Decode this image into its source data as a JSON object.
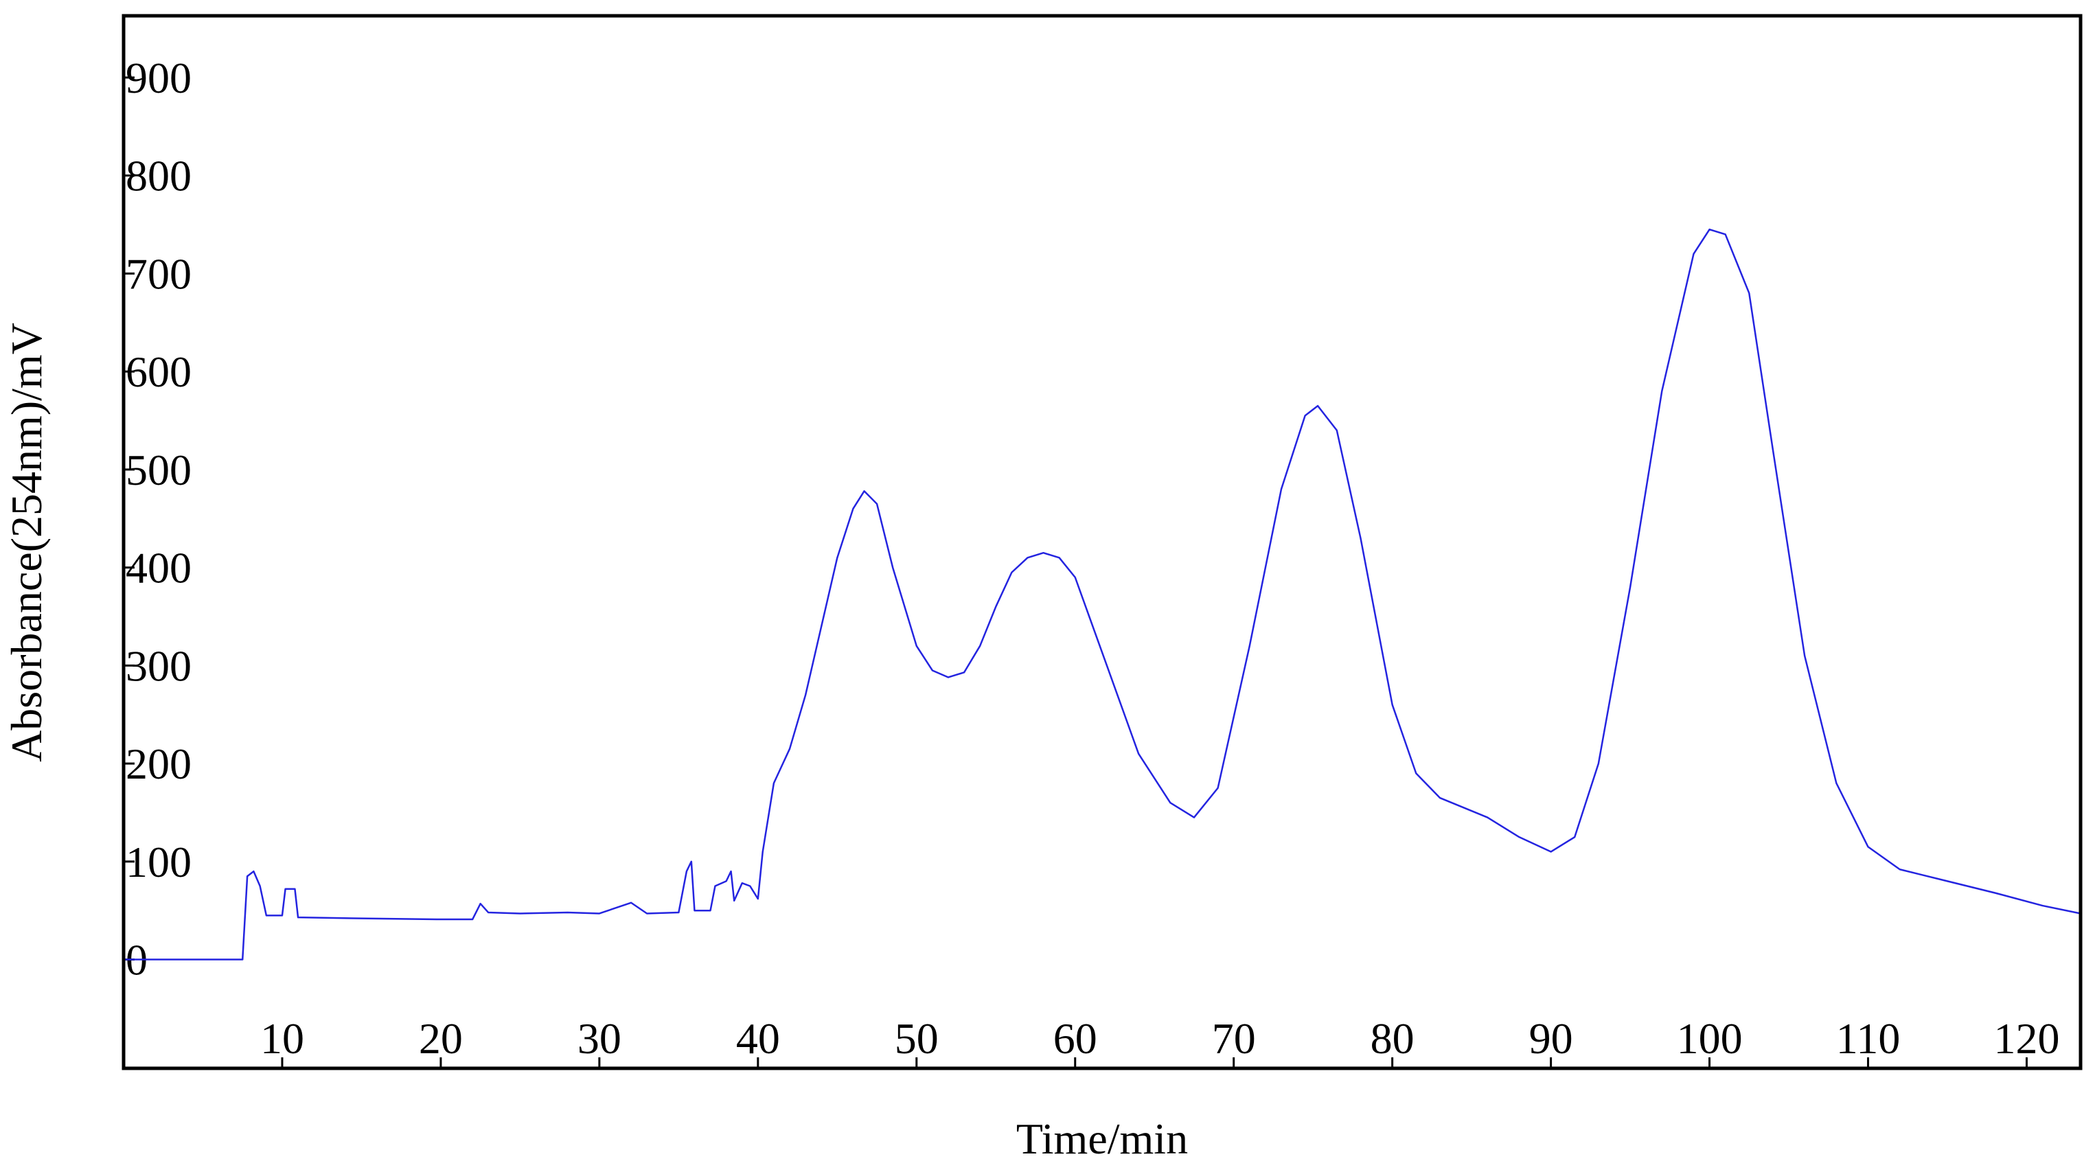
{
  "chart_data": {
    "type": "line",
    "x_label": "Time/min",
    "y_label": "Absorbance(254nm)/mV",
    "xlim": [
      0,
      123.4
    ],
    "ylim": [
      -111,
      963
    ],
    "xticks": [
      10,
      20,
      30,
      40,
      50,
      60,
      70,
      80,
      90,
      100,
      110,
      120
    ],
    "yticks": [
      0,
      100,
      200,
      300,
      400,
      500,
      600,
      700,
      800,
      900
    ],
    "series": [
      {
        "color": "#2424e0",
        "x": [
          0,
          7.5,
          7.8,
          8.2,
          8.6,
          9,
          10,
          10.2,
          10.8,
          11,
          15,
          20,
          22,
          22.5,
          23,
          25,
          28,
          30,
          32,
          33,
          35,
          35.5,
          35.8,
          36,
          37,
          37.3,
          38,
          38.3,
          38.5,
          39,
          39.5,
          40,
          40.3,
          41,
          42,
          43,
          44,
          45,
          46,
          46.7,
          47.5,
          48.5,
          50,
          51,
          52,
          53,
          54,
          55,
          56,
          57,
          58,
          59,
          60,
          62,
          64,
          66,
          67.5,
          69,
          71,
          73,
          74.5,
          75.3,
          76.5,
          78,
          80,
          81.5,
          83,
          86,
          88,
          90,
          91.5,
          93,
          95,
          97,
          99,
          100,
          101,
          102.5,
          104,
          106,
          108,
          110,
          112,
          115,
          118,
          121,
          123.4
        ],
        "values": [
          0,
          0,
          85,
          90,
          75,
          45,
          45,
          72,
          72,
          43,
          42,
          41,
          41,
          57,
          48,
          47,
          48,
          47,
          58,
          47,
          48,
          90,
          100,
          50,
          50,
          75,
          80,
          90,
          60,
          78,
          75,
          62,
          110,
          180,
          215,
          270,
          340,
          410,
          460,
          478,
          465,
          400,
          320,
          295,
          288,
          293,
          320,
          360,
          395,
          410,
          415,
          410,
          390,
          300,
          210,
          160,
          145,
          175,
          320,
          480,
          555,
          565,
          540,
          430,
          260,
          190,
          165,
          145,
          125,
          110,
          125,
          200,
          380,
          580,
          720,
          745,
          740,
          680,
          520,
          310,
          180,
          115,
          92,
          80,
          68,
          55,
          47
        ]
      }
    ]
  }
}
